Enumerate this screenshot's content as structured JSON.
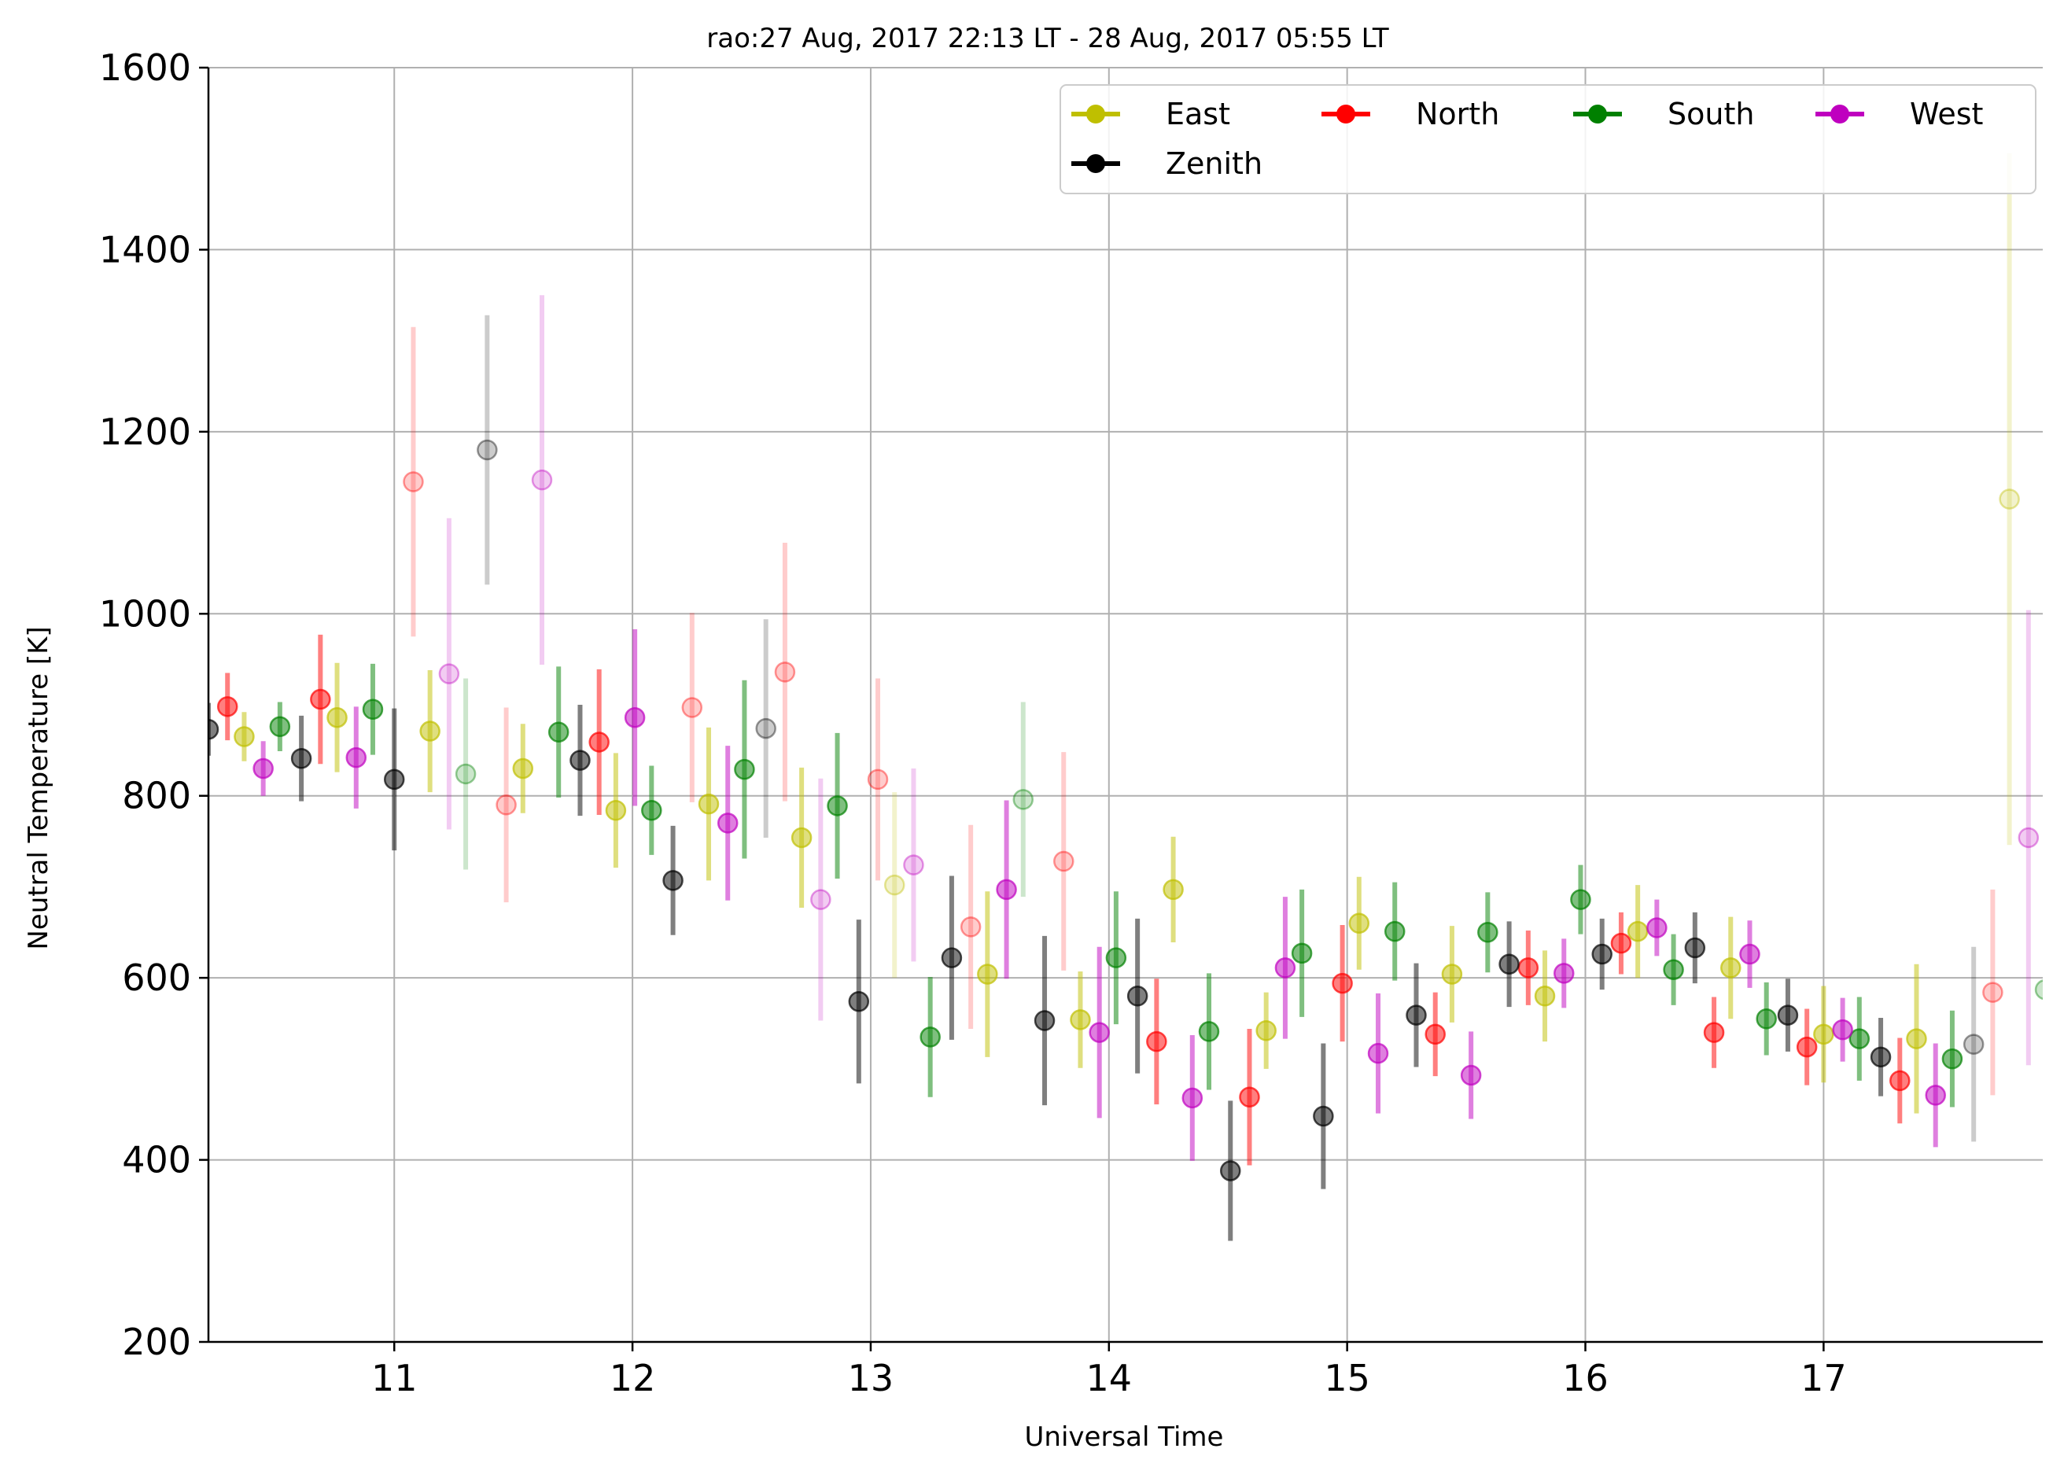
{
  "chart_data": {
    "type": "scatter",
    "title": "rao:27 Aug, 2017 22:13 LT - 28 Aug, 2017 05:55 LT",
    "xlabel": "Universal Time",
    "ylabel": "Neutral Temperature [K]",
    "xlim": [
      10.22,
      17.92
    ],
    "ylim": [
      200,
      1600
    ],
    "xticks": [
      "11",
      "12",
      "13",
      "14",
      "15",
      "16",
      "17"
    ],
    "yticks": [
      "200",
      "400",
      "600",
      "800",
      "1000",
      "1200",
      "1400",
      "1600"
    ],
    "grid": true,
    "legend_position": "top-right",
    "series": [
      {
        "name": "East",
        "color": "#bfbf00",
        "points": [
          {
            "x": 10.37,
            "y": 865,
            "err": 27,
            "faint": false
          },
          {
            "x": 10.76,
            "y": 886,
            "err": 60,
            "faint": false
          },
          {
            "x": 11.15,
            "y": 871,
            "err": 67,
            "faint": false
          },
          {
            "x": 11.54,
            "y": 830,
            "err": 49,
            "faint": false
          },
          {
            "x": 11.93,
            "y": 784,
            "err": 63,
            "faint": false
          },
          {
            "x": 12.32,
            "y": 791,
            "err": 84,
            "faint": false
          },
          {
            "x": 12.71,
            "y": 754,
            "err": 77,
            "faint": false
          },
          {
            "x": 13.1,
            "y": 702,
            "err": 102,
            "faint": true
          },
          {
            "x": 13.49,
            "y": 604,
            "err": 91,
            "faint": false
          },
          {
            "x": 13.88,
            "y": 554,
            "err": 53,
            "faint": false
          },
          {
            "x": 14.27,
            "y": 697,
            "err": 58,
            "faint": false
          },
          {
            "x": 14.66,
            "y": 542,
            "err": 42,
            "faint": false
          },
          {
            "x": 15.05,
            "y": 660,
            "err": 51,
            "faint": false
          },
          {
            "x": 15.44,
            "y": 604,
            "err": 53,
            "faint": false
          },
          {
            "x": 15.83,
            "y": 580,
            "err": 50,
            "faint": false
          },
          {
            "x": 16.22,
            "y": 651,
            "err": 51,
            "faint": false
          },
          {
            "x": 16.61,
            "y": 611,
            "err": 56,
            "faint": false
          },
          {
            "x": 17.0,
            "y": 538,
            "err": 53,
            "faint": false
          },
          {
            "x": 17.39,
            "y": 533,
            "err": 82,
            "faint": false
          },
          {
            "x": 17.78,
            "y": 1126,
            "err": 380,
            "faint": true
          }
        ]
      },
      {
        "name": "North",
        "color": "#ff0000",
        "points": [
          {
            "x": 10.3,
            "y": 898,
            "err": 37,
            "faint": false
          },
          {
            "x": 10.69,
            "y": 906,
            "err": 71,
            "faint": false
          },
          {
            "x": 11.08,
            "y": 1145,
            "err": 170,
            "faint": true
          },
          {
            "x": 11.47,
            "y": 790,
            "err": 107,
            "faint": true
          },
          {
            "x": 11.86,
            "y": 859,
            "err": 80,
            "faint": false
          },
          {
            "x": 12.25,
            "y": 897,
            "err": 104,
            "faint": true
          },
          {
            "x": 12.64,
            "y": 936,
            "err": 142,
            "faint": true
          },
          {
            "x": 13.03,
            "y": 818,
            "err": 111,
            "faint": true
          },
          {
            "x": 13.42,
            "y": 656,
            "err": 112,
            "faint": true
          },
          {
            "x": 13.81,
            "y": 728,
            "err": 120,
            "faint": true
          },
          {
            "x": 14.2,
            "y": 530,
            "err": 69,
            "faint": false
          },
          {
            "x": 14.59,
            "y": 469,
            "err": 75,
            "faint": false
          },
          {
            "x": 14.98,
            "y": 594,
            "err": 64,
            "faint": false
          },
          {
            "x": 15.37,
            "y": 538,
            "err": 46,
            "faint": false
          },
          {
            "x": 15.76,
            "y": 611,
            "err": 41,
            "faint": false
          },
          {
            "x": 16.15,
            "y": 638,
            "err": 34,
            "faint": false
          },
          {
            "x": 16.54,
            "y": 540,
            "err": 39,
            "faint": false
          },
          {
            "x": 16.93,
            "y": 524,
            "err": 42,
            "faint": false
          },
          {
            "x": 17.32,
            "y": 487,
            "err": 47,
            "faint": false
          },
          {
            "x": 17.71,
            "y": 584,
            "err": 113,
            "faint": true
          }
        ]
      },
      {
        "name": "South",
        "color": "#008000",
        "points": [
          {
            "x": 10.52,
            "y": 876,
            "err": 27,
            "faint": false
          },
          {
            "x": 10.91,
            "y": 895,
            "err": 50,
            "faint": false
          },
          {
            "x": 11.3,
            "y": 824,
            "err": 105,
            "faint": true
          },
          {
            "x": 11.69,
            "y": 870,
            "err": 72,
            "faint": false
          },
          {
            "x": 12.08,
            "y": 784,
            "err": 49,
            "faint": false
          },
          {
            "x": 12.47,
            "y": 829,
            "err": 98,
            "faint": false
          },
          {
            "x": 12.86,
            "y": 789,
            "err": 80,
            "faint": false
          },
          {
            "x": 13.25,
            "y": 535,
            "err": 66,
            "faint": false
          },
          {
            "x": 13.64,
            "y": 796,
            "err": 107,
            "faint": true
          },
          {
            "x": 14.03,
            "y": 622,
            "err": 73,
            "faint": false
          },
          {
            "x": 14.42,
            "y": 541,
            "err": 64,
            "faint": false
          },
          {
            "x": 14.81,
            "y": 627,
            "err": 70,
            "faint": false
          },
          {
            "x": 15.2,
            "y": 651,
            "err": 54,
            "faint": false
          },
          {
            "x": 15.59,
            "y": 650,
            "err": 44,
            "faint": false
          },
          {
            "x": 15.98,
            "y": 686,
            "err": 38,
            "faint": false
          },
          {
            "x": 16.37,
            "y": 609,
            "err": 39,
            "faint": false
          },
          {
            "x": 16.76,
            "y": 555,
            "err": 40,
            "faint": false
          },
          {
            "x": 17.15,
            "y": 533,
            "err": 46,
            "faint": false
          },
          {
            "x": 17.54,
            "y": 511,
            "err": 53,
            "faint": false
          },
          {
            "x": 17.93,
            "y": 587,
            "err": 166,
            "faint": true
          }
        ]
      },
      {
        "name": "West",
        "color": "#bf00bf",
        "points": [
          {
            "x": 10.45,
            "y": 830,
            "err": 30,
            "faint": false
          },
          {
            "x": 10.84,
            "y": 842,
            "err": 56,
            "faint": false
          },
          {
            "x": 11.23,
            "y": 934,
            "err": 171,
            "faint": true
          },
          {
            "x": 11.62,
            "y": 1147,
            "err": 203,
            "faint": true
          },
          {
            "x": 12.01,
            "y": 886,
            "err": 97,
            "faint": false
          },
          {
            "x": 12.4,
            "y": 770,
            "err": 85,
            "faint": false
          },
          {
            "x": 12.79,
            "y": 686,
            "err": 133,
            "faint": true
          },
          {
            "x": 13.18,
            "y": 724,
            "err": 106,
            "faint": true
          },
          {
            "x": 13.57,
            "y": 697,
            "err": 98,
            "faint": false
          },
          {
            "x": 13.96,
            "y": 540,
            "err": 94,
            "faint": false
          },
          {
            "x": 14.35,
            "y": 468,
            "err": 69,
            "faint": false
          },
          {
            "x": 14.74,
            "y": 611,
            "err": 78,
            "faint": false
          },
          {
            "x": 15.13,
            "y": 517,
            "err": 66,
            "faint": false
          },
          {
            "x": 15.52,
            "y": 493,
            "err": 48,
            "faint": false
          },
          {
            "x": 15.91,
            "y": 605,
            "err": 38,
            "faint": false
          },
          {
            "x": 16.3,
            "y": 655,
            "err": 31,
            "faint": false
          },
          {
            "x": 16.69,
            "y": 626,
            "err": 37,
            "faint": false
          },
          {
            "x": 17.08,
            "y": 543,
            "err": 35,
            "faint": false
          },
          {
            "x": 17.47,
            "y": 471,
            "err": 57,
            "faint": false
          },
          {
            "x": 17.86,
            "y": 754,
            "err": 250,
            "faint": true
          }
        ]
      },
      {
        "name": "Zenith",
        "color": "#000000",
        "points": [
          {
            "x": 10.22,
            "y": 873,
            "err": 29,
            "faint": false
          },
          {
            "x": 10.61,
            "y": 841,
            "err": 47,
            "faint": false
          },
          {
            "x": 11.0,
            "y": 818,
            "err": 78,
            "faint": false
          },
          {
            "x": 11.39,
            "y": 1180,
            "err": 148,
            "faint": true
          },
          {
            "x": 11.78,
            "y": 839,
            "err": 61,
            "faint": false
          },
          {
            "x": 12.17,
            "y": 707,
            "err": 60,
            "faint": false
          },
          {
            "x": 12.56,
            "y": 874,
            "err": 120,
            "faint": true
          },
          {
            "x": 12.95,
            "y": 574,
            "err": 90,
            "faint": false
          },
          {
            "x": 13.34,
            "y": 622,
            "err": 90,
            "faint": false
          },
          {
            "x": 13.73,
            "y": 553,
            "err": 93,
            "faint": false
          },
          {
            "x": 14.12,
            "y": 580,
            "err": 85,
            "faint": false
          },
          {
            "x": 14.51,
            "y": 388,
            "err": 77,
            "faint": false
          },
          {
            "x": 14.9,
            "y": 448,
            "err": 80,
            "faint": false
          },
          {
            "x": 15.29,
            "y": 559,
            "err": 57,
            "faint": false
          },
          {
            "x": 15.68,
            "y": 615,
            "err": 47,
            "faint": false
          },
          {
            "x": 16.07,
            "y": 626,
            "err": 39,
            "faint": false
          },
          {
            "x": 16.46,
            "y": 633,
            "err": 39,
            "faint": false
          },
          {
            "x": 16.85,
            "y": 559,
            "err": 40,
            "faint": false
          },
          {
            "x": 17.24,
            "y": 513,
            "err": 43,
            "faint": false
          },
          {
            "x": 17.63,
            "y": 527,
            "err": 107,
            "faint": true
          }
        ]
      }
    ]
  }
}
